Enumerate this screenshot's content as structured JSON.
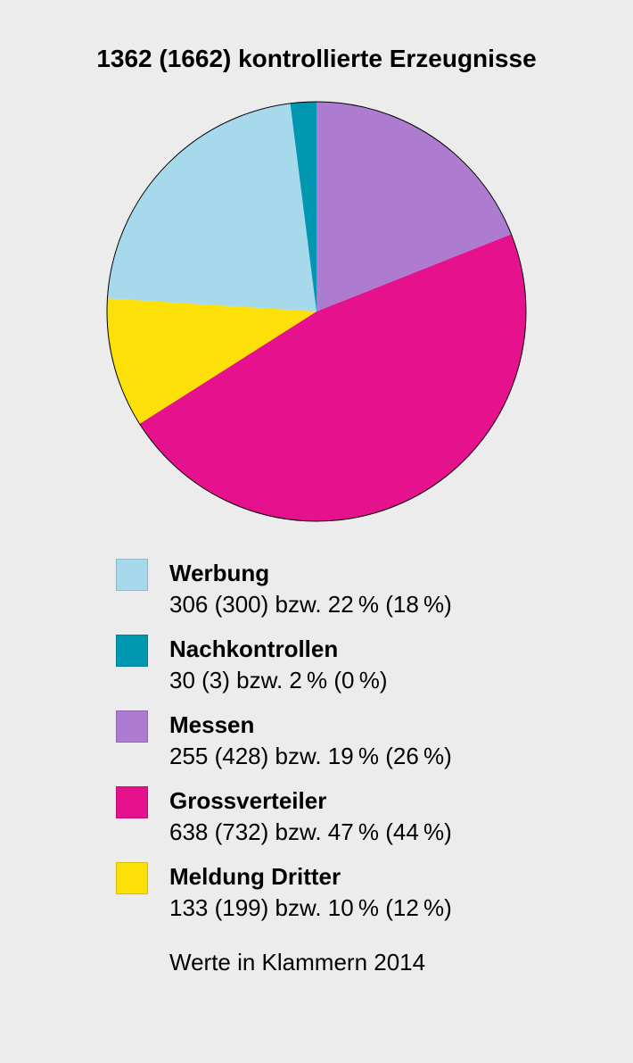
{
  "chart": {
    "type": "pie",
    "title": "1362 (1662) kontrollierte Erzeugnisse",
    "title_fontsize": 28,
    "title_fontweight": 700,
    "background_color": "#ececec",
    "pie_radius": 235,
    "pie_outline_color": "#000000",
    "pie_outline_width": 1,
    "start_angle_deg": -52,
    "direction": "clockwise",
    "slices": [
      {
        "label": "Werbung",
        "value_current": 306,
        "value_prev": 300,
        "percent_current": 22,
        "percent_prev": 18,
        "color": "#a7d9ec"
      },
      {
        "label": "Nachkontrollen",
        "value_current": 30,
        "value_prev": 3,
        "percent_current": 2,
        "percent_prev": 0,
        "color": "#0097b0"
      },
      {
        "label": "Messen",
        "value_current": 255,
        "value_prev": 428,
        "percent_current": 19,
        "percent_prev": 26,
        "color": "#ad7bd0"
      },
      {
        "label": "Grossverteiler",
        "value_current": 638,
        "value_prev": 732,
        "percent_current": 47,
        "percent_prev": 44,
        "color": "#e6118d"
      },
      {
        "label": "Meldung Dritter",
        "value_current": 133,
        "value_prev": 199,
        "percent_current": 10,
        "percent_prev": 12,
        "color": "#fde008"
      }
    ],
    "legend": {
      "swatch_size": 34,
      "swatch_border": "#cfcfcf",
      "label_fontsize": 26,
      "label_fontweight": 700,
      "value_fontsize": 26,
      "items": [
        {
          "label": "Werbung",
          "value_text": "306 (300) bzw. 22 % (18 %)",
          "color": "#a7d9ec"
        },
        {
          "label": "Nachkontrollen",
          "value_text": "30 (3) bzw. 2 % (0 %)",
          "color": "#0097b0"
        },
        {
          "label": "Messen",
          "value_text": "255 (428) bzw. 19 % (26 %)",
          "color": "#ad7bd0"
        },
        {
          "label": "Grossverteiler",
          "value_text": "638 (732) bzw. 47 % (44 %)",
          "color": "#e6118d"
        },
        {
          "label": "Meldung Dritter",
          "value_text": "133 (199) bzw. 10 % (12 %)",
          "color": "#fde008"
        }
      ]
    },
    "footnote": "Werte in Klammern 2014",
    "footnote_fontsize": 26
  }
}
